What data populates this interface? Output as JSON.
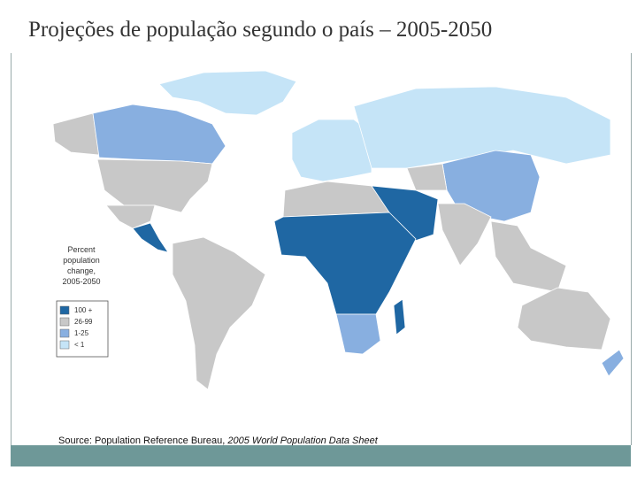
{
  "title": "Projeções de população segundo o país – 2005-2050",
  "legend": {
    "title_lines": [
      "Percent",
      "population",
      "change,",
      "2005-2050"
    ],
    "items": [
      {
        "label": "100 +",
        "color": "#1f67a3"
      },
      {
        "label": "26-99",
        "color": "#c8c8c8"
      },
      {
        "label": "1-25",
        "color": "#88afe0"
      },
      {
        "label": "< 1",
        "color": "#c5e4f7"
      }
    ]
  },
  "source": {
    "text": "Source: Population Reference Bureau, ",
    "italic": "2005 World Population Data Sheet"
  }
}
